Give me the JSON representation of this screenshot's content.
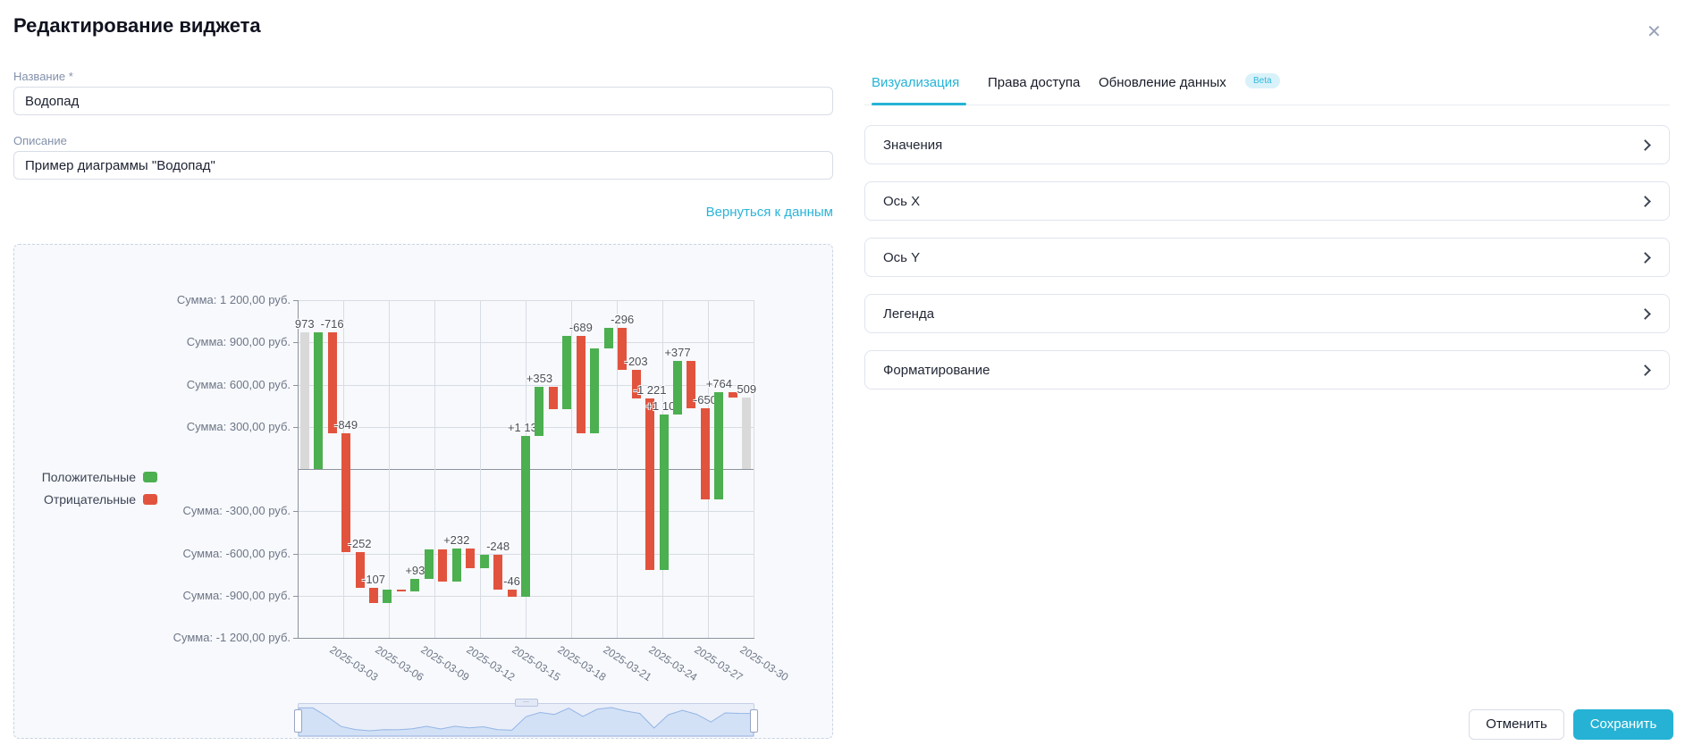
{
  "dialog": {
    "title": "Редактирование виджета",
    "close_icon": "✕"
  },
  "form": {
    "name_label": "Название *",
    "name_value": "Водопад",
    "description_label": "Описание",
    "description_value": "Пример диаграммы \"Водопад\"",
    "back_link": "Вернуться к данным"
  },
  "tabs": [
    {
      "label": "Визуализация",
      "active": true
    },
    {
      "label": "Права доступа",
      "active": false
    },
    {
      "label": "Обновление данных",
      "active": false,
      "badge": "Beta"
    }
  ],
  "accordion": [
    "Значения",
    "Ось X",
    "Ось Y",
    "Легенда",
    "Форматирование"
  ],
  "footer": {
    "cancel": "Отменить",
    "save": "Сохранить"
  },
  "colors": {
    "accent": "#26b3d6",
    "positive": "#4caf50",
    "negative": "#e2533e",
    "total": "#d9d9d9",
    "grid": "#d8dce3",
    "axis": "#8d939e"
  },
  "chart_data": {
    "type": "bar",
    "subtype": "waterfall",
    "title": "",
    "xlabel": "",
    "ylabel": "Сумма, руб.",
    "ylim": [
      -1200,
      1200
    ],
    "grid": true,
    "legend_position": "left",
    "legend": [
      {
        "label": "Положительные",
        "color": "#4caf50"
      },
      {
        "label": "Отрицательные",
        "color": "#e2533e"
      }
    ],
    "y_ticks": [
      {
        "value": 1200,
        "label": "Сумма: 1 200,00 руб."
      },
      {
        "value": 900,
        "label": "Сумма: 900,00 руб."
      },
      {
        "value": 600,
        "label": "Сумма: 600,00 руб."
      },
      {
        "value": 300,
        "label": "Сумма: 300,00 руб."
      },
      {
        "value": 0,
        "label": null
      },
      {
        "value": -300,
        "label": "Сумма: -300,00 руб."
      },
      {
        "value": -600,
        "label": "Сумма: -600,00 руб."
      },
      {
        "value": -900,
        "label": "Сумма: -900,00 руб."
      },
      {
        "value": -1200,
        "label": "Сумма: -1 200,00 руб."
      }
    ],
    "x_dates": [
      "2025-03-03",
      "2025-03-06",
      "2025-03-09",
      "2025-03-12",
      "2025-03-15",
      "2025-03-18",
      "2025-03-21",
      "2025-03-24",
      "2025-03-27",
      "2025-03-30"
    ],
    "bars": [
      {
        "kind": "total",
        "value": 973,
        "label": "973"
      },
      {
        "kind": "delta",
        "value": 973,
        "label": null
      },
      {
        "kind": "delta",
        "value": -716,
        "label": "-716"
      },
      {
        "kind": "delta",
        "value": -849,
        "label": "-849"
      },
      {
        "kind": "delta",
        "value": -252,
        "label": "-252"
      },
      {
        "kind": "delta",
        "value": -107,
        "label": "-107"
      },
      {
        "kind": "delta",
        "value": 96,
        "label": null
      },
      {
        "kind": "delta",
        "value": -16,
        "label": null
      },
      {
        "kind": "delta",
        "value": 93,
        "label": "+93"
      },
      {
        "kind": "delta",
        "value": 204,
        "label": null
      },
      {
        "kind": "delta",
        "value": -224,
        "label": null
      },
      {
        "kind": "delta",
        "value": 232,
        "label": "+232"
      },
      {
        "kind": "delta",
        "value": -140,
        "label": null
      },
      {
        "kind": "delta",
        "value": 95,
        "label": null
      },
      {
        "kind": "delta",
        "value": -248,
        "label": "-248"
      },
      {
        "kind": "delta",
        "value": -46,
        "label": "-46"
      },
      {
        "kind": "delta",
        "value": 1137,
        "label": "+1 137"
      },
      {
        "kind": "delta",
        "value": 353,
        "label": "+353"
      },
      {
        "kind": "delta",
        "value": -160,
        "label": null
      },
      {
        "kind": "delta",
        "value": 520,
        "label": null
      },
      {
        "kind": "delta",
        "value": -689,
        "label": "-689"
      },
      {
        "kind": "delta",
        "value": 600,
        "label": null
      },
      {
        "kind": "delta",
        "value": 145,
        "label": null
      },
      {
        "kind": "delta",
        "value": -296,
        "label": "-296"
      },
      {
        "kind": "delta",
        "value": -203,
        "label": "-203"
      },
      {
        "kind": "delta",
        "value": -1221,
        "label": "-1 221"
      },
      {
        "kind": "delta",
        "value": 1109,
        "label": "+1 109"
      },
      {
        "kind": "delta",
        "value": 377,
        "label": "+377"
      },
      {
        "kind": "delta",
        "value": -333,
        "label": null
      },
      {
        "kind": "delta",
        "value": -650,
        "label": "-650"
      },
      {
        "kind": "delta",
        "value": 764,
        "label": "+764"
      },
      {
        "kind": "delta",
        "value": -38,
        "label": null
      },
      {
        "kind": "total",
        "value": 509,
        "label": "509"
      }
    ]
  }
}
